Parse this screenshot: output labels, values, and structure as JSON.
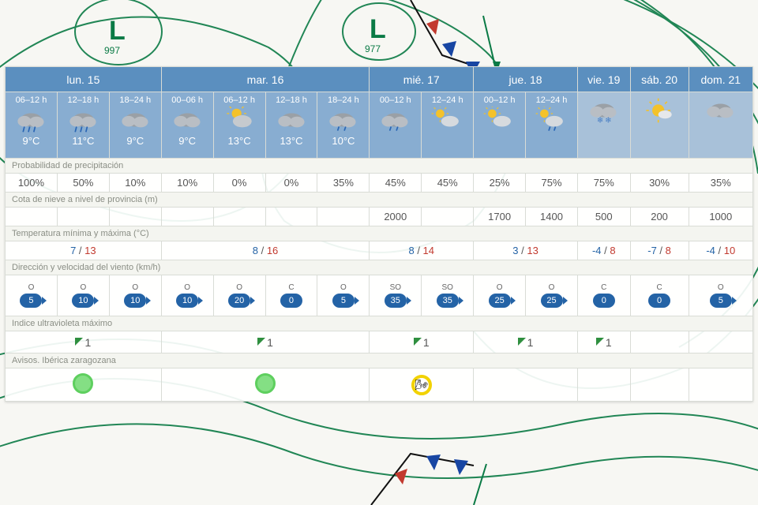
{
  "days": [
    {
      "label": "lun. 15",
      "span": 3
    },
    {
      "label": "mar. 16",
      "span": 4
    },
    {
      "label": "mié. 17",
      "span": 2
    },
    {
      "label": "jue. 18",
      "span": 2
    },
    {
      "label": "vie. 19",
      "span": 1
    },
    {
      "label": "sáb. 20",
      "span": 1
    },
    {
      "label": "dom. 21",
      "span": 1
    }
  ],
  "slots": [
    {
      "time": "06–12 h",
      "icon": "rain",
      "temp": "9°C"
    },
    {
      "time": "12–18 h",
      "icon": "rain",
      "temp": "11°C"
    },
    {
      "time": "18–24 h",
      "icon": "cloud",
      "temp": "9°C"
    },
    {
      "time": "00–06 h",
      "icon": "cloud",
      "temp": "9°C"
    },
    {
      "time": "06–12 h",
      "icon": "suncloud",
      "temp": "13°C"
    },
    {
      "time": "12–18 h",
      "icon": "cloud",
      "temp": "13°C"
    },
    {
      "time": "18–24 h",
      "icon": "lightrain",
      "temp": "10°C"
    },
    {
      "time": "00–12 h",
      "icon": "lightrain",
      "temp": ""
    },
    {
      "time": "12–24 h",
      "icon": "partcloud",
      "temp": ""
    },
    {
      "time": "00–12 h",
      "icon": "partcloud",
      "temp": ""
    },
    {
      "time": "12–24 h",
      "icon": "sunshower",
      "temp": ""
    },
    {
      "time": "",
      "icon": "snow",
      "temp": "",
      "light": true
    },
    {
      "time": "",
      "icon": "sunny",
      "temp": "",
      "light": true
    },
    {
      "time": "",
      "icon": "cloud",
      "temp": "",
      "light": true
    }
  ],
  "labels": {
    "precip": "Probabilidad de precipitación",
    "snow": "Cota de nieve a nivel de provincia (m)",
    "temp": "Temperatura mínima y máxima (°C)",
    "wind": "Dirección y velocidad del viento (km/h)",
    "uv": "Indice ultravioleta máximo",
    "avisos": "Avisos. Ibérica zaragozana"
  },
  "precip": [
    "100%",
    "50%",
    "10%",
    "10%",
    "0%",
    "0%",
    "35%",
    "45%",
    "45%",
    "25%",
    "75%",
    "75%",
    "30%",
    "35%"
  ],
  "snow": [
    "",
    "",
    "",
    "",
    "",
    "",
    "",
    "2000",
    "",
    "1700",
    "1400",
    "500",
    "200",
    "1000"
  ],
  "temps": [
    {
      "span": 3,
      "min": "7",
      "max": "13"
    },
    {
      "span": 4,
      "min": "8",
      "max": "16"
    },
    {
      "span": 2,
      "min": "8",
      "max": "14"
    },
    {
      "span": 2,
      "min": "3",
      "max": "13"
    },
    {
      "span": 1,
      "min": "-4",
      "max": "8"
    },
    {
      "span": 1,
      "min": "-7",
      "max": "8"
    },
    {
      "span": 1,
      "min": "-4",
      "max": "10"
    }
  ],
  "wind": [
    {
      "dir": "O",
      "spd": "5"
    },
    {
      "dir": "O",
      "spd": "10"
    },
    {
      "dir": "O",
      "spd": "10"
    },
    {
      "dir": "O",
      "spd": "10"
    },
    {
      "dir": "O",
      "spd": "20"
    },
    {
      "dir": "C",
      "spd": "0",
      "calm": true
    },
    {
      "dir": "O",
      "spd": "5"
    },
    {
      "dir": "SO",
      "spd": "35"
    },
    {
      "dir": "SO",
      "spd": "35"
    },
    {
      "dir": "O",
      "spd": "25"
    },
    {
      "dir": "O",
      "spd": "25"
    },
    {
      "dir": "C",
      "spd": "0",
      "calm": true
    },
    {
      "dir": "C",
      "spd": "0",
      "calm": true
    },
    {
      "dir": "O",
      "spd": "5"
    }
  ],
  "uv": [
    {
      "span": 3,
      "val": "1"
    },
    {
      "span": 4,
      "val": "1"
    },
    {
      "span": 2,
      "val": "1"
    },
    {
      "span": 2,
      "val": "1"
    },
    {
      "span": 1,
      "val": "1"
    },
    {
      "span": 1,
      "val": ""
    },
    {
      "span": 1,
      "val": ""
    }
  ],
  "avisos": [
    {
      "span": 3,
      "type": "green"
    },
    {
      "span": 4,
      "type": "green"
    },
    {
      "span": 2,
      "type": "yellow"
    },
    {
      "span": 2,
      "type": ""
    },
    {
      "span": 1,
      "type": ""
    },
    {
      "span": 1,
      "type": ""
    },
    {
      "span": 1,
      "type": ""
    }
  ],
  "pressure": {
    "l1": "997",
    "l2": "977"
  },
  "colors": {
    "contour": "#0a7a45",
    "headerBlue": "#5b8fbf",
    "slotBlue": "#88add1",
    "windBadge": "#2463a6",
    "tempMax": "#c23a2f"
  }
}
